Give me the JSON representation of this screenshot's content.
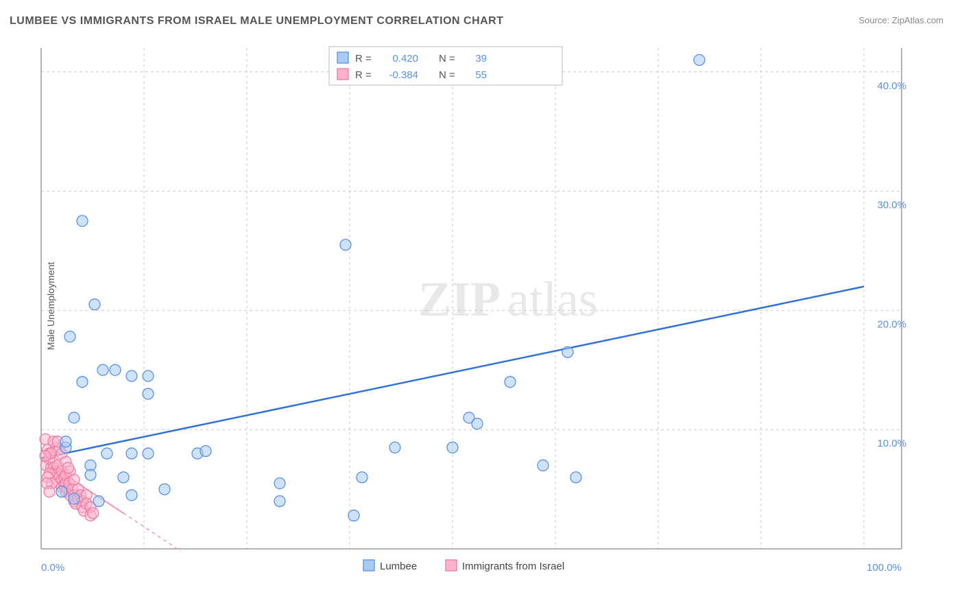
{
  "title": "LUMBEE VS IMMIGRANTS FROM ISRAEL MALE UNEMPLOYMENT CORRELATION CHART",
  "source": "Source: ZipAtlas.com",
  "ylabel": "Male Unemployment",
  "watermark_a": "ZIP",
  "watermark_b": "atlas",
  "chart": {
    "type": "scatter",
    "xlim": [
      0,
      100
    ],
    "ylim": [
      0,
      42
    ],
    "yticks": [
      10,
      20,
      30,
      40
    ],
    "ytick_labels": [
      "10.0%",
      "20.0%",
      "30.0%",
      "40.0%"
    ],
    "xtick_labels": {
      "left": "0.0%",
      "right": "100.0%"
    },
    "xgrid": [
      12.5,
      25,
      37.5,
      50,
      62.5,
      75,
      87.5,
      100
    ],
    "background_color": "#ffffff",
    "grid_color": "#cccccc",
    "marker_radius": 8,
    "series": [
      {
        "name": "Lumbee",
        "color_fill": "#a9cbf1",
        "color_stroke": "#5591e8",
        "correlation_R": "0.420",
        "correlation_N": "39",
        "trend": {
          "x1": 0,
          "y1": 7.6,
          "x2": 100,
          "y2": 22.0
        },
        "points": [
          [
            5,
            27.5
          ],
          [
            3.5,
            17.8
          ],
          [
            6.5,
            20.5
          ],
          [
            7.5,
            15
          ],
          [
            9,
            15
          ],
          [
            11,
            14.5
          ],
          [
            13,
            14.5
          ],
          [
            5,
            14
          ],
          [
            3,
            8.5
          ],
          [
            2.5,
            4.8
          ],
          [
            4,
            4.2
          ],
          [
            6,
            7
          ],
          [
            8,
            8
          ],
          [
            11,
            8
          ],
          [
            13,
            8
          ],
          [
            19,
            8
          ],
          [
            11,
            4.5
          ],
          [
            15,
            5
          ],
          [
            13,
            13
          ],
          [
            20,
            8.2
          ],
          [
            10,
            6
          ],
          [
            6,
            6.2
          ],
          [
            29,
            5.5
          ],
          [
            29,
            4
          ],
          [
            37,
            25.5
          ],
          [
            38,
            2.8
          ],
          [
            39,
            6
          ],
          [
            43,
            8.5
          ],
          [
            50,
            8.5
          ],
          [
            52,
            11
          ],
          [
            53,
            10.5
          ],
          [
            57,
            14
          ],
          [
            61,
            7
          ],
          [
            64,
            16.5
          ],
          [
            65,
            6
          ],
          [
            80,
            41
          ],
          [
            3,
            9
          ],
          [
            4,
            11
          ],
          [
            7,
            4
          ]
        ]
      },
      {
        "name": "Immigrants from Israel",
        "color_fill": "#fdb3c9",
        "color_stroke": "#f07aa2",
        "correlation_R": "-0.384",
        "correlation_N": "55",
        "trend": {
          "x1": 0,
          "y1": 7.5,
          "x2": 10,
          "y2": 3.0
        },
        "trend_dash": {
          "x1": 10,
          "y1": 3.0,
          "x2": 17,
          "y2": -0.2
        },
        "points": [
          [
            0.5,
            9.2
          ],
          [
            0.8,
            8.3
          ],
          [
            1,
            8.0
          ],
          [
            1,
            7.5
          ],
          [
            0.6,
            7.0
          ],
          [
            1.2,
            6.8
          ],
          [
            1.5,
            7.2
          ],
          [
            1.5,
            6.8
          ],
          [
            1.8,
            6.5
          ],
          [
            2,
            7.0
          ],
          [
            2,
            6.3
          ],
          [
            2.2,
            6.0
          ],
          [
            2.2,
            5.5
          ],
          [
            2.5,
            6.5
          ],
          [
            2.5,
            5.8
          ],
          [
            2.5,
            5.2
          ],
          [
            2.8,
            6.0
          ],
          [
            2.8,
            5.3
          ],
          [
            3,
            6.2
          ],
          [
            3,
            5.5
          ],
          [
            3,
            4.8
          ],
          [
            3.2,
            5.0
          ],
          [
            3.4,
            5.5
          ],
          [
            3.5,
            4.5
          ],
          [
            3.5,
            6.5
          ],
          [
            3.8,
            5.0
          ],
          [
            4,
            5.8
          ],
          [
            4,
            4.5
          ],
          [
            4,
            4.0
          ],
          [
            4.2,
            3.8
          ],
          [
            4.5,
            4.2
          ],
          [
            4.5,
            5.0
          ],
          [
            4.8,
            4.5
          ],
          [
            5,
            4.0
          ],
          [
            5,
            3.5
          ],
          [
            5.2,
            3.2
          ],
          [
            5.5,
            4.5
          ],
          [
            5.5,
            3.8
          ],
          [
            6,
            3.5
          ],
          [
            6,
            2.8
          ],
          [
            6.3,
            3.0
          ],
          [
            2.2,
            8.3
          ],
          [
            1.8,
            8.5
          ],
          [
            2.5,
            8.0
          ],
          [
            1.2,
            8.0
          ],
          [
            1.5,
            9.0
          ],
          [
            2.0,
            9.0
          ],
          [
            1.0,
            6.3
          ],
          [
            0.8,
            6.0
          ],
          [
            1.3,
            5.5
          ],
          [
            3.0,
            7.3
          ],
          [
            3.3,
            6.8
          ],
          [
            0.5,
            7.8
          ],
          [
            0.7,
            5.5
          ],
          [
            1.0,
            4.8
          ]
        ]
      }
    ],
    "legend_top": {
      "R_label": "R =",
      "N_label": "N ="
    },
    "legend_bottom": [
      "Lumbee",
      "Immigrants from Israel"
    ]
  }
}
